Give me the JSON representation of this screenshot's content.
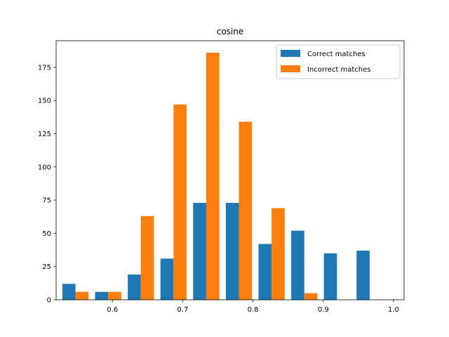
{
  "chart_data": {
    "type": "bar",
    "title": "cosine",
    "xlabel": "",
    "ylabel": "",
    "bin_centers": [
      0.5475,
      0.594,
      0.6405,
      0.687,
      0.7335,
      0.78,
      0.8265,
      0.873,
      0.9195,
      0.966
    ],
    "xlim": [
      0.52,
      1.015
    ],
    "ylim": [
      0,
      195
    ],
    "xticks": [
      0.6,
      0.7,
      0.8,
      0.9,
      1.0
    ],
    "xtick_labels": [
      "0.6",
      "0.7",
      "0.8",
      "0.9",
      "1.0"
    ],
    "yticks": [
      0,
      25,
      50,
      75,
      100,
      125,
      150,
      175
    ],
    "ytick_labels": [
      "0",
      "25",
      "50",
      "75",
      "100",
      "125",
      "150",
      "175"
    ],
    "series": [
      {
        "name": "Correct matches",
        "color": "#1f77b4",
        "values": [
          12,
          6,
          19,
          31,
          73,
          73,
          42,
          52,
          35,
          37
        ]
      },
      {
        "name": "Incorrect matches",
        "color": "#ff7f0e",
        "values": [
          6,
          6,
          63,
          147,
          186,
          134,
          69,
          5,
          0,
          0
        ]
      }
    ],
    "legend_position": "top-right",
    "grid": false
  }
}
